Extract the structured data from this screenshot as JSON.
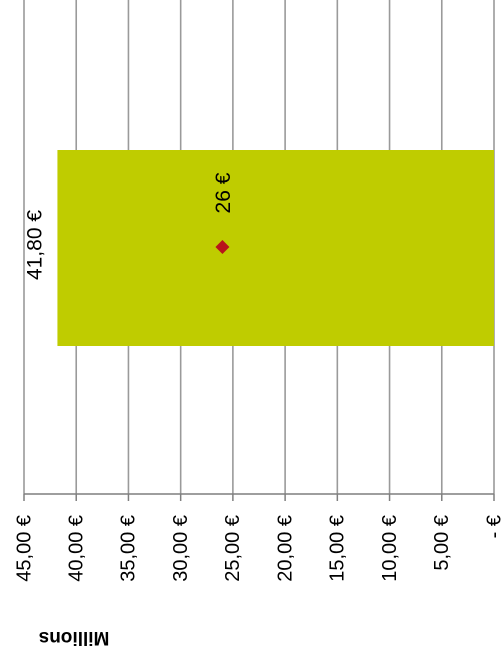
{
  "chart_data": {
    "type": "bar",
    "orientation": "rotated-90-clockwise",
    "categories": [
      ""
    ],
    "values": [
      41.8
    ],
    "value_label": "41,80 €",
    "marker": {
      "value": 26,
      "label": "26 €",
      "shape": "diamond"
    },
    "axis": {
      "label": "Millions",
      "range": [
        0,
        45
      ],
      "ticks": [
        {
          "value": 45,
          "label": "45,00 €"
        },
        {
          "value": 40,
          "label": "40,00 €"
        },
        {
          "value": 35,
          "label": "35,00 €"
        },
        {
          "value": 30,
          "label": "30,00 €"
        },
        {
          "value": 25,
          "label": "25,00 €"
        },
        {
          "value": 20,
          "label": "20,00 €"
        },
        {
          "value": 15,
          "label": "15,00 €"
        },
        {
          "value": 10,
          "label": "10,00 €"
        },
        {
          "value": 5,
          "label": "5,00 €"
        },
        {
          "value": 0,
          "label": "-   €"
        }
      ]
    },
    "grid": true,
    "colors": {
      "bar": "#bfcc00",
      "marker": "#b8151b",
      "grid": "#9a9a9a",
      "axis": "#7f7f7f"
    }
  }
}
